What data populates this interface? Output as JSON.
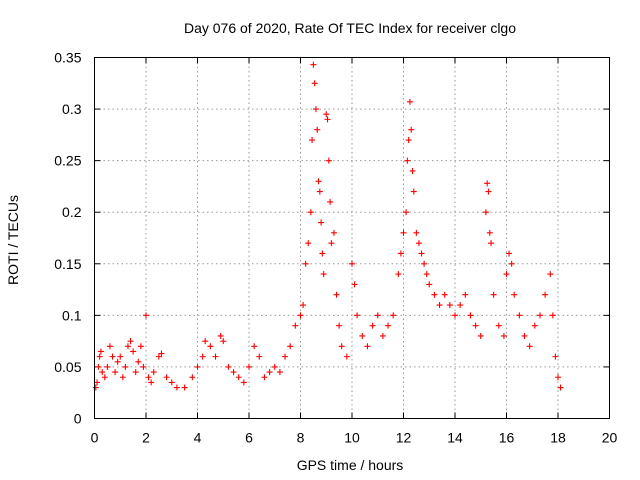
{
  "chart_data": {
    "type": "scatter",
    "title": "Day 076 of 2020, Rate Of TEC Index for receiver clgo",
    "xlabel": "GPS time / hours",
    "ylabel": "ROTI / TECUs",
    "xlim": [
      0,
      20
    ],
    "ylim": [
      0,
      0.35
    ],
    "grid": true,
    "x_ticks": [
      0,
      2,
      4,
      6,
      8,
      10,
      12,
      14,
      16,
      18,
      20
    ],
    "x_tick_labels": [
      "0",
      "2",
      "4",
      "6",
      "8",
      "10",
      "12",
      "14",
      "16",
      "18",
      "20"
    ],
    "y_ticks": [
      0,
      0.05,
      0.1,
      0.15,
      0.2,
      0.25,
      0.3,
      0.35
    ],
    "y_tick_labels": [
      "0",
      "0.05",
      "0.1",
      "0.15",
      "0.2",
      "0.25",
      "0.3",
      "0.35"
    ],
    "marker": "plus",
    "color": "#ff0000",
    "series": [
      {
        "name": "ROTI",
        "points": [
          [
            0.05,
            0.03
          ],
          [
            0.1,
            0.035
          ],
          [
            0.15,
            0.05
          ],
          [
            0.2,
            0.06
          ],
          [
            0.25,
            0.065
          ],
          [
            0.3,
            0.045
          ],
          [
            0.4,
            0.04
          ],
          [
            0.5,
            0.05
          ],
          [
            0.6,
            0.07
          ],
          [
            0.7,
            0.06
          ],
          [
            0.8,
            0.045
          ],
          [
            0.9,
            0.055
          ],
          [
            1.0,
            0.06
          ],
          [
            1.1,
            0.04
          ],
          [
            1.2,
            0.05
          ],
          [
            1.3,
            0.07
          ],
          [
            1.4,
            0.075
          ],
          [
            1.5,
            0.065
          ],
          [
            1.6,
            0.045
          ],
          [
            1.7,
            0.055
          ],
          [
            1.8,
            0.07
          ],
          [
            1.9,
            0.05
          ],
          [
            2.0,
            0.1
          ],
          [
            2.1,
            0.04
          ],
          [
            2.2,
            0.035
          ],
          [
            2.3,
            0.045
          ],
          [
            2.5,
            0.06
          ],
          [
            2.6,
            0.063
          ],
          [
            2.8,
            0.04
          ],
          [
            3.0,
            0.035
          ],
          [
            3.2,
            0.03
          ],
          [
            3.5,
            0.03
          ],
          [
            3.8,
            0.04
          ],
          [
            4.0,
            0.05
          ],
          [
            4.2,
            0.06
          ],
          [
            4.3,
            0.075
          ],
          [
            4.5,
            0.07
          ],
          [
            4.7,
            0.06
          ],
          [
            4.9,
            0.08
          ],
          [
            5.0,
            0.075
          ],
          [
            5.2,
            0.05
          ],
          [
            5.4,
            0.045
          ],
          [
            5.6,
            0.04
          ],
          [
            5.8,
            0.035
          ],
          [
            6.0,
            0.05
          ],
          [
            6.2,
            0.07
          ],
          [
            6.4,
            0.06
          ],
          [
            6.6,
            0.04
          ],
          [
            6.8,
            0.045
          ],
          [
            7.0,
            0.05
          ],
          [
            7.2,
            0.045
          ],
          [
            7.4,
            0.06
          ],
          [
            7.6,
            0.07
          ],
          [
            7.8,
            0.09
          ],
          [
            8.0,
            0.1
          ],
          [
            8.1,
            0.11
          ],
          [
            8.2,
            0.15
          ],
          [
            8.3,
            0.17
          ],
          [
            8.4,
            0.2
          ],
          [
            8.45,
            0.27
          ],
          [
            8.5,
            0.343
          ],
          [
            8.55,
            0.325
          ],
          [
            8.6,
            0.3
          ],
          [
            8.65,
            0.28
          ],
          [
            8.7,
            0.23
          ],
          [
            8.75,
            0.22
          ],
          [
            8.8,
            0.19
          ],
          [
            8.85,
            0.16
          ],
          [
            8.9,
            0.14
          ],
          [
            9.0,
            0.295
          ],
          [
            9.05,
            0.29
          ],
          [
            9.1,
            0.25
          ],
          [
            9.15,
            0.21
          ],
          [
            9.2,
            0.17
          ],
          [
            9.3,
            0.18
          ],
          [
            9.4,
            0.12
          ],
          [
            9.5,
            0.09
          ],
          [
            9.6,
            0.07
          ],
          [
            9.8,
            0.06
          ],
          [
            10.0,
            0.15
          ],
          [
            10.1,
            0.13
          ],
          [
            10.2,
            0.1
          ],
          [
            10.4,
            0.08
          ],
          [
            10.6,
            0.07
          ],
          [
            10.8,
            0.09
          ],
          [
            11.0,
            0.1
          ],
          [
            11.2,
            0.08
          ],
          [
            11.4,
            0.09
          ],
          [
            11.6,
            0.1
          ],
          [
            11.8,
            0.14
          ],
          [
            11.9,
            0.16
          ],
          [
            12.0,
            0.18
          ],
          [
            12.1,
            0.2
          ],
          [
            12.15,
            0.25
          ],
          [
            12.2,
            0.27
          ],
          [
            12.25,
            0.307
          ],
          [
            12.3,
            0.28
          ],
          [
            12.35,
            0.24
          ],
          [
            12.4,
            0.22
          ],
          [
            12.5,
            0.18
          ],
          [
            12.6,
            0.17
          ],
          [
            12.7,
            0.16
          ],
          [
            12.8,
            0.15
          ],
          [
            12.9,
            0.14
          ],
          [
            13.0,
            0.13
          ],
          [
            13.2,
            0.12
          ],
          [
            13.4,
            0.11
          ],
          [
            13.6,
            0.12
          ],
          [
            13.8,
            0.11
          ],
          [
            14.0,
            0.1
          ],
          [
            14.2,
            0.11
          ],
          [
            14.4,
            0.12
          ],
          [
            14.6,
            0.1
          ],
          [
            14.8,
            0.09
          ],
          [
            15.0,
            0.08
          ],
          [
            15.2,
            0.2
          ],
          [
            15.25,
            0.228
          ],
          [
            15.3,
            0.22
          ],
          [
            15.35,
            0.18
          ],
          [
            15.4,
            0.17
          ],
          [
            15.5,
            0.12
          ],
          [
            15.7,
            0.09
          ],
          [
            15.9,
            0.08
          ],
          [
            16.0,
            0.14
          ],
          [
            16.1,
            0.16
          ],
          [
            16.2,
            0.15
          ],
          [
            16.3,
            0.12
          ],
          [
            16.5,
            0.1
          ],
          [
            16.7,
            0.08
          ],
          [
            16.9,
            0.07
          ],
          [
            17.1,
            0.09
          ],
          [
            17.3,
            0.1
          ],
          [
            17.5,
            0.12
          ],
          [
            17.7,
            0.14
          ],
          [
            17.8,
            0.1
          ],
          [
            17.9,
            0.06
          ],
          [
            18.0,
            0.04
          ],
          [
            18.1,
            0.03
          ]
        ]
      }
    ]
  }
}
